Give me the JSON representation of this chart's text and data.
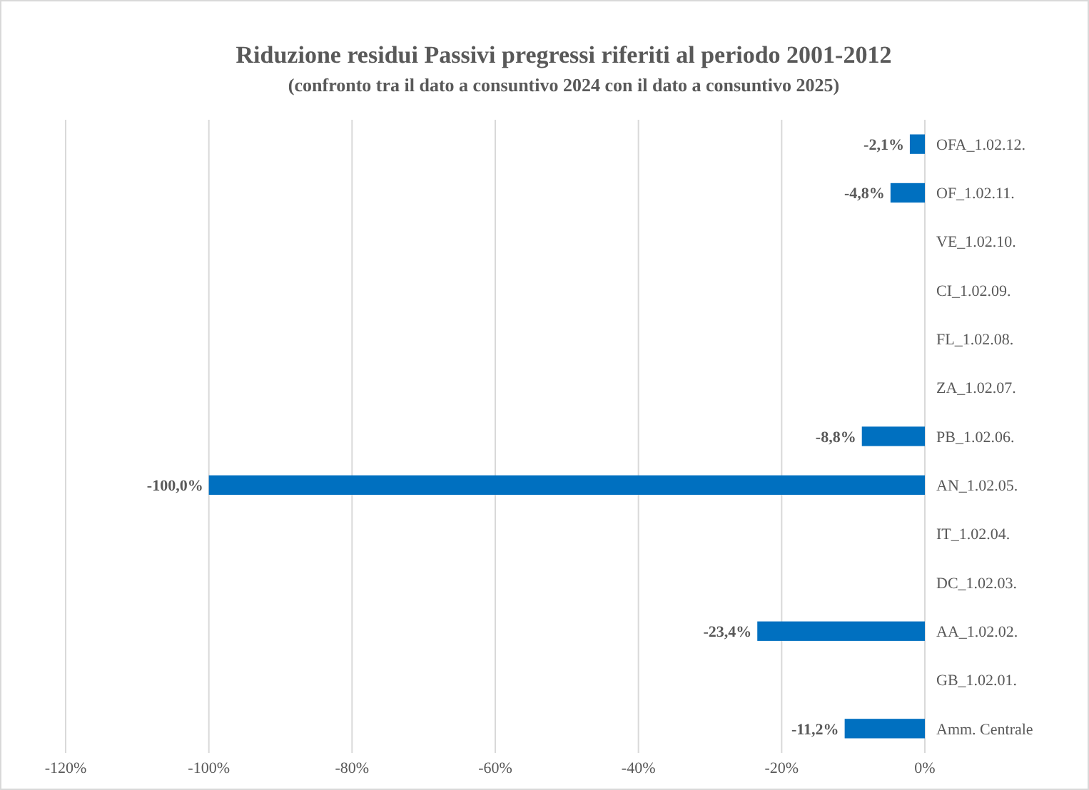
{
  "chart_data": {
    "type": "bar",
    "orientation": "horizontal",
    "title": "Riduzione residui Passivi pregressi riferiti al periodo 2001-2012",
    "subtitle": "(confronto tra il dato a consuntivo 2024 con il dato a consuntivo 2025)",
    "categories": [
      "OFA_1.02.12.",
      "OF_1.02.11.",
      "VE_1.02.10.",
      "CI_1.02.09.",
      "FL_1.02.08.",
      "ZA_1.02.07.",
      "PB_1.02.06.",
      "AN_1.02.05.",
      "IT_1.02.04.",
      "DC_1.02.03.",
      "AA_1.02.02.",
      "GB_1.02.01.",
      "Amm. Centrale"
    ],
    "values": [
      -2.1,
      -4.8,
      0,
      0,
      0,
      0,
      -8.8,
      -100,
      0,
      0,
      -23.4,
      0,
      -11.2
    ],
    "value_labels": [
      "-2,1%",
      "-4,8%",
      null,
      null,
      null,
      null,
      "-8,8%",
      "-100,0%",
      null,
      null,
      "-23,4%",
      null,
      "-11,2%"
    ],
    "color": "#0070c0",
    "xlim": [
      -120,
      0
    ],
    "xticks": [
      {
        "value": -120,
        "label": "-120%"
      },
      {
        "value": -100,
        "label": "-100%"
      },
      {
        "value": -80,
        "label": "-80%"
      },
      {
        "value": -60,
        "label": "-60%"
      },
      {
        "value": -40,
        "label": "-40%"
      },
      {
        "value": -20,
        "label": "-20%"
      },
      {
        "value": 0,
        "label": "0%"
      }
    ],
    "grid": "x"
  }
}
